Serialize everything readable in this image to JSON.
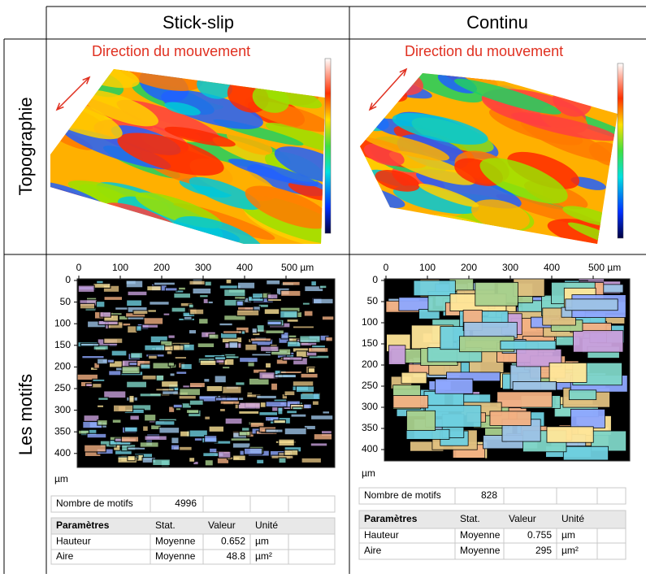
{
  "header": {
    "columns": [
      "Stick-slip",
      "Continu"
    ],
    "rows": [
      "Topographie",
      "Les motifs"
    ]
  },
  "panels": [
    {
      "annotation": "Direction du mouvement",
      "x_ticks": [
        "0",
        "100",
        "200",
        "300",
        "400",
        "500 µm"
      ],
      "y_ticks": [
        "0",
        "50",
        "100",
        "150",
        "200",
        "250",
        "300",
        "350",
        "400"
      ],
      "unit": "µm",
      "count_label": "Nombre de motifs",
      "count": 4996,
      "table": {
        "header": [
          "Paramètres",
          "Stat.",
          "Valeur",
          "Unité"
        ],
        "rows": [
          [
            "Hauteur",
            "Moyenne",
            0.652,
            "µm"
          ],
          [
            "Aire",
            "Moyenne",
            48.8,
            "µm²"
          ]
        ]
      }
    },
    {
      "annotation": "Direction du mouvement",
      "x_ticks": [
        "0",
        "100",
        "200",
        "300",
        "400",
        "500 µm"
      ],
      "y_ticks": [
        "0",
        "50",
        "100",
        "150",
        "200",
        "250",
        "300",
        "350",
        "400"
      ],
      "unit": "µm",
      "count_label": "Nombre de motifs",
      "count": 828,
      "table": {
        "header": [
          "Paramètres",
          "Stat.",
          "Valeur",
          "Unité"
        ],
        "rows": [
          [
            "Hauteur",
            "Moyenne",
            0.755,
            "µm"
          ],
          [
            "Aire",
            "Moyenne",
            295,
            "µm²"
          ]
        ]
      }
    }
  ]
}
